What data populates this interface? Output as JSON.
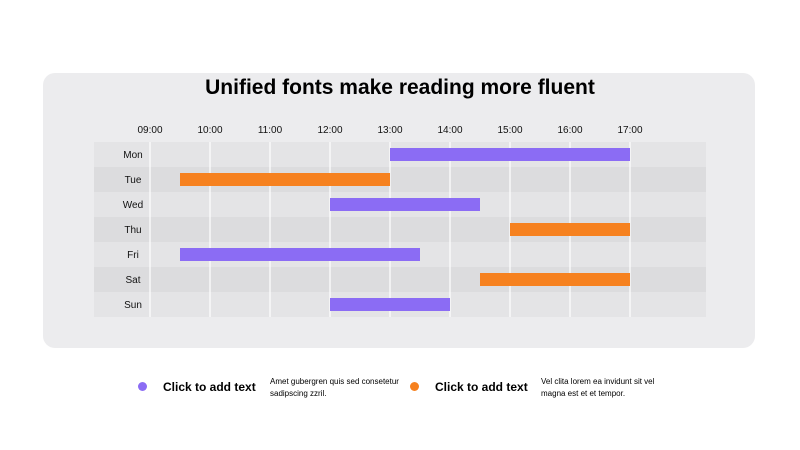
{
  "colors": {
    "purple": "#8b6cf4",
    "orange": "#f6811f"
  },
  "chart_data": {
    "type": "bar",
    "orientation": "horizontal-range",
    "title": "Unified fonts make reading more fluent",
    "x_ticks": [
      "09:00",
      "10:00",
      "11:00",
      "12:00",
      "13:00",
      "14:00",
      "15:00",
      "16:00",
      "17:00"
    ],
    "xlim": [
      "09:00",
      "17:00"
    ],
    "categories": [
      "Mon",
      "Tue",
      "Wed",
      "Thu",
      "Fri",
      "Sat",
      "Sun"
    ],
    "bars": [
      {
        "day": "Mon",
        "start": "13:00",
        "end": "17:00",
        "color": "purple"
      },
      {
        "day": "Tue",
        "start": "09:30",
        "end": "13:00",
        "color": "orange"
      },
      {
        "day": "Wed",
        "start": "12:00",
        "end": "14:30",
        "color": "purple"
      },
      {
        "day": "Thu",
        "start": "15:00",
        "end": "17:00",
        "color": "orange"
      },
      {
        "day": "Fri",
        "start": "09:30",
        "end": "13:30",
        "color": "purple"
      },
      {
        "day": "Sat",
        "start": "14:30",
        "end": "17:00",
        "color": "orange"
      },
      {
        "day": "Sun",
        "start": "12:00",
        "end": "14:00",
        "color": "purple"
      }
    ],
    "grid": true
  },
  "legend": [
    {
      "title": "Click to add text",
      "desc": "Amet gubergren  quis sed consetetur  sadipscing  zzril.",
      "color": "purple"
    },
    {
      "title": "Click to add text",
      "desc": "Vel clita lorem ea invidunt  sit vel magna est et et tempor.",
      "color": "orange"
    }
  ]
}
